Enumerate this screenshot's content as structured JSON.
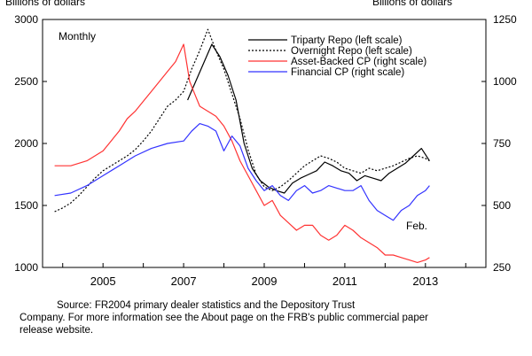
{
  "chart_data": {
    "type": "line",
    "left_axis_label": "Billions of dollars",
    "right_axis_label": "Billions of dollars",
    "frequency_label": "Monthly",
    "end_label": "Feb.",
    "left_ylim": [
      1000,
      3000
    ],
    "left_yticks": [
      "1000",
      "1500",
      "2000",
      "2500",
      "3000"
    ],
    "right_ylim": [
      250,
      1250
    ],
    "right_yticks": [
      "250",
      "500",
      "750",
      "1000",
      "1250"
    ],
    "xlim": [
      2003.5,
      2014.5
    ],
    "xticks": [
      "2005",
      "2007",
      "2009",
      "2011",
      "2013"
    ],
    "legend_position": "top-right",
    "colors": {
      "triparty": "#000000",
      "overnight": "#000000",
      "abcp": "#ff3333",
      "fincp": "#3333ff"
    },
    "series": [
      {
        "name": "Triparty Repo (left scale)",
        "axis": "left",
        "style": "solid",
        "color": "#000000",
        "x": [
          2007.1,
          2007.3,
          2007.5,
          2007.7,
          2007.9,
          2008.1,
          2008.3,
          2008.5,
          2008.7,
          2008.9,
          2009.1,
          2009.3,
          2009.5,
          2009.7,
          2009.9,
          2010.1,
          2010.3,
          2010.5,
          2010.7,
          2010.9,
          2011.1,
          2011.3,
          2011.5,
          2011.7,
          2011.9,
          2012.1,
          2012.3,
          2012.5,
          2012.7,
          2012.9,
          2013.1
        ],
        "y": [
          2350,
          2500,
          2650,
          2800,
          2700,
          2550,
          2350,
          2000,
          1800,
          1700,
          1650,
          1620,
          1600,
          1680,
          1720,
          1750,
          1780,
          1850,
          1820,
          1780,
          1760,
          1700,
          1740,
          1720,
          1700,
          1760,
          1800,
          1840,
          1900,
          1960,
          1860
        ]
      },
      {
        "name": "Overnight Repo (left scale)",
        "axis": "left",
        "style": "dotted",
        "color": "#000000",
        "x": [
          2003.8,
          2004.0,
          2004.2,
          2004.4,
          2004.6,
          2004.8,
          2005.0,
          2005.2,
          2005.4,
          2005.6,
          2005.8,
          2006.0,
          2006.2,
          2006.4,
          2006.6,
          2006.8,
          2007.0,
          2007.2,
          2007.4,
          2007.6,
          2007.8,
          2008.0,
          2008.2,
          2008.4,
          2008.6,
          2008.8,
          2009.0,
          2009.2,
          2009.4,
          2009.6,
          2009.8,
          2010.0,
          2010.2,
          2010.4,
          2010.6,
          2010.8,
          2011.0,
          2011.2,
          2011.4,
          2011.6,
          2011.8,
          2012.0,
          2012.2,
          2012.4,
          2012.6,
          2012.8,
          2013.0,
          2013.1
        ],
        "y": [
          1450,
          1480,
          1520,
          1580,
          1650,
          1720,
          1780,
          1820,
          1860,
          1900,
          1950,
          2020,
          2100,
          2200,
          2300,
          2350,
          2420,
          2600,
          2750,
          2920,
          2750,
          2600,
          2400,
          2200,
          1950,
          1750,
          1650,
          1620,
          1650,
          1700,
          1760,
          1820,
          1860,
          1900,
          1880,
          1850,
          1800,
          1780,
          1760,
          1800,
          1780,
          1800,
          1820,
          1850,
          1880,
          1900,
          1880,
          1860
        ]
      },
      {
        "name": "Asset-Backed CP (right scale)",
        "axis": "right",
        "style": "solid",
        "color": "#ff3333",
        "x": [
          2003.8,
          2004.2,
          2004.6,
          2004.8,
          2005.0,
          2005.2,
          2005.4,
          2005.6,
          2005.8,
          2006.0,
          2006.2,
          2006.4,
          2006.6,
          2006.8,
          2007.0,
          2007.15,
          2007.3,
          2007.4,
          2007.6,
          2007.8,
          2008.0,
          2008.2,
          2008.4,
          2008.6,
          2008.8,
          2009.0,
          2009.2,
          2009.4,
          2009.6,
          2009.8,
          2010.0,
          2010.2,
          2010.4,
          2010.6,
          2010.8,
          2011.0,
          2011.2,
          2011.4,
          2011.6,
          2011.8,
          2012.0,
          2012.2,
          2012.4,
          2012.6,
          2012.8,
          2013.0,
          2013.1
        ],
        "y": [
          660,
          660,
          680,
          700,
          720,
          760,
          800,
          850,
          880,
          920,
          960,
          1000,
          1040,
          1080,
          1150,
          1000,
          940,
          900,
          880,
          860,
          820,
          760,
          680,
          620,
          560,
          500,
          520,
          460,
          430,
          400,
          420,
          420,
          380,
          360,
          380,
          420,
          400,
          370,
          350,
          330,
          300,
          300,
          290,
          280,
          270,
          280,
          290
        ]
      },
      {
        "name": "Financial CP (right scale)",
        "axis": "right",
        "style": "solid",
        "color": "#3333ff",
        "x": [
          2003.8,
          2004.2,
          2004.6,
          2005.0,
          2005.4,
          2005.8,
          2006.2,
          2006.6,
          2007.0,
          2007.2,
          2007.4,
          2007.6,
          2007.8,
          2008.0,
          2008.2,
          2008.4,
          2008.6,
          2008.8,
          2009.0,
          2009.2,
          2009.4,
          2009.6,
          2009.8,
          2010.0,
          2010.2,
          2010.4,
          2010.6,
          2010.8,
          2011.0,
          2011.2,
          2011.4,
          2011.6,
          2011.8,
          2012.0,
          2012.2,
          2012.4,
          2012.6,
          2012.8,
          2013.0,
          2013.1
        ],
        "y": [
          540,
          550,
          580,
          620,
          660,
          700,
          730,
          750,
          760,
          800,
          830,
          820,
          800,
          720,
          780,
          740,
          650,
          600,
          560,
          580,
          540,
          520,
          560,
          580,
          550,
          560,
          580,
          570,
          560,
          560,
          580,
          520,
          480,
          460,
          440,
          480,
          500,
          540,
          560,
          580
        ]
      }
    ]
  },
  "source_note": {
    "line1": "Source: FR2004 primary dealer statistics and the Depository Trust",
    "line2": "Company. For more information see the About page on the FRB's public",
    "line3": "commercial paper release website."
  }
}
